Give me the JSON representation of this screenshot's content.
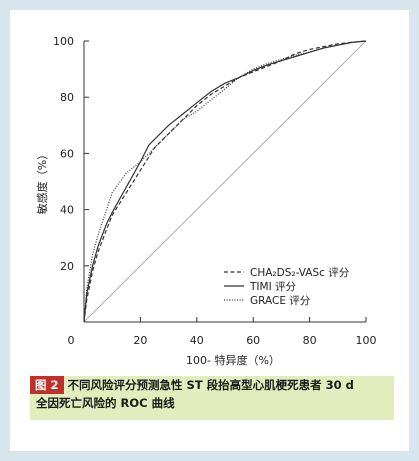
{
  "chart_data": {
    "type": "line",
    "xlabel": "100- 特异度（%）",
    "ylabel": "敏感度（%）",
    "xlim": [
      0,
      100
    ],
    "ylim": [
      0,
      100
    ],
    "xticks": [
      "0",
      "20",
      "40",
      "60",
      "80",
      "100"
    ],
    "yticks": [
      "20",
      "40",
      "60",
      "80",
      "100"
    ],
    "grid": false,
    "legend_position": "bottom-right",
    "reference_line": true,
    "series": [
      {
        "name": "CHA₂DS₂-VASc 评分",
        "style": "dashed",
        "points": [
          [
            0,
            0
          ],
          [
            1,
            8
          ],
          [
            3,
            18
          ],
          [
            5,
            25
          ],
          [
            8,
            33
          ],
          [
            10,
            38
          ],
          [
            15,
            46
          ],
          [
            20,
            54
          ],
          [
            25,
            62
          ],
          [
            30,
            67
          ],
          [
            35,
            72
          ],
          [
            40,
            77
          ],
          [
            45,
            81
          ],
          [
            50,
            84
          ],
          [
            55,
            87
          ],
          [
            60,
            89
          ],
          [
            65,
            91
          ],
          [
            70,
            93
          ],
          [
            75,
            95.5
          ],
          [
            80,
            97
          ],
          [
            85,
            98
          ],
          [
            90,
            99
          ],
          [
            95,
            99.5
          ],
          [
            100,
            100
          ]
        ]
      },
      {
        "name": "TIMI 评分",
        "style": "solid",
        "points": [
          [
            0,
            0
          ],
          [
            1,
            10
          ],
          [
            3,
            20
          ],
          [
            5,
            27
          ],
          [
            8,
            35
          ],
          [
            10,
            39
          ],
          [
            15,
            48
          ],
          [
            20,
            57
          ],
          [
            23,
            63
          ],
          [
            30,
            70
          ],
          [
            35,
            74
          ],
          [
            40,
            78
          ],
          [
            45,
            82
          ],
          [
            50,
            85
          ],
          [
            55,
            87
          ],
          [
            60,
            89.5
          ],
          [
            65,
            91.5
          ],
          [
            70,
            93
          ],
          [
            75,
            94.5
          ],
          [
            80,
            96
          ],
          [
            85,
            97.5
          ],
          [
            90,
            98.5
          ],
          [
            95,
            99.5
          ],
          [
            100,
            100
          ]
        ]
      },
      {
        "name": "GRACE 评分",
        "style": "dotted",
        "points": [
          [
            0,
            0
          ],
          [
            1,
            12
          ],
          [
            3,
            24
          ],
          [
            5,
            31
          ],
          [
            8,
            40
          ],
          [
            10,
            46
          ],
          [
            15,
            53
          ],
          [
            20,
            57
          ],
          [
            25,
            62
          ],
          [
            30,
            67
          ],
          [
            35,
            72
          ],
          [
            40,
            75
          ],
          [
            45,
            79
          ],
          [
            50,
            83
          ],
          [
            55,
            87
          ],
          [
            60,
            90
          ],
          [
            65,
            92
          ],
          [
            70,
            93.5
          ],
          [
            75,
            95
          ],
          [
            80,
            96
          ],
          [
            85,
            97.5
          ],
          [
            90,
            98.5
          ],
          [
            95,
            99.5
          ],
          [
            100,
            100
          ]
        ]
      }
    ]
  },
  "caption": {
    "figure_label": "图 2",
    "line1": "不同风险评分预测急性 ST 段抬高型心肌梗死患者 30 d",
    "line2": "全因死亡风险的 ROC 曲线"
  },
  "colors": {
    "background": "#d6e6ec",
    "caption_bg": "#e1edbd",
    "figure_tag": "#c0302c",
    "axis": "#333333",
    "curve": "#333333",
    "reference": "#999999"
  }
}
